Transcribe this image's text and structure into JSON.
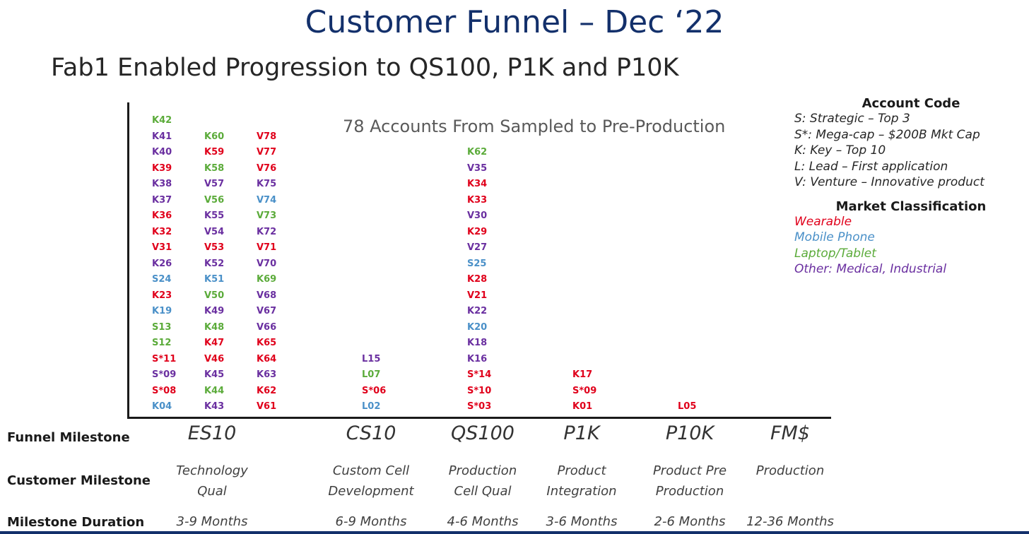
{
  "title": "Customer Funnel – Dec ‘22",
  "subtitle": "Fab1 Enabled Progression to QS100, P1K and P10K",
  "colors": {
    "wearable": "#e0001b",
    "mobile": "#4a90c8",
    "laptop": "#5bab3a",
    "other": "#6a2fa0",
    "title": "#13306b"
  },
  "chart_data": {
    "type": "table",
    "title": "78 Accounts From Sampled to Pre-Production",
    "stages": [
      "ES10",
      "CS10",
      "QS100",
      "P1K",
      "P10K",
      "FM$"
    ],
    "columns": [
      {
        "stage": "ES10",
        "accounts": [
          {
            "code": "K42",
            "market": "laptop"
          },
          {
            "code": "K41",
            "market": "other"
          },
          {
            "code": "K40",
            "market": "other"
          },
          {
            "code": "K39",
            "market": "wearable"
          },
          {
            "code": "K38",
            "market": "other"
          },
          {
            "code": "K37",
            "market": "other"
          },
          {
            "code": "K36",
            "market": "wearable"
          },
          {
            "code": "K32",
            "market": "wearable"
          },
          {
            "code": "V31",
            "market": "wearable"
          },
          {
            "code": "K26",
            "market": "other"
          },
          {
            "code": "S24",
            "market": "mobile"
          },
          {
            "code": "K23",
            "market": "wearable"
          },
          {
            "code": "K19",
            "market": "mobile"
          },
          {
            "code": "S13",
            "market": "laptop"
          },
          {
            "code": "S12",
            "market": "laptop"
          },
          {
            "code": "S*11",
            "market": "wearable"
          },
          {
            "code": "S*09",
            "market": "other"
          },
          {
            "code": "S*08",
            "market": "wearable"
          },
          {
            "code": "K04",
            "market": "mobile"
          }
        ]
      },
      {
        "stage": "ES10",
        "accounts": [
          {
            "code": "K60",
            "market": "laptop"
          },
          {
            "code": "K59",
            "market": "wearable"
          },
          {
            "code": "K58",
            "market": "laptop"
          },
          {
            "code": "V57",
            "market": "other"
          },
          {
            "code": "V56",
            "market": "laptop"
          },
          {
            "code": "K55",
            "market": "other"
          },
          {
            "code": "V54",
            "market": "other"
          },
          {
            "code": "V53",
            "market": "wearable"
          },
          {
            "code": "K52",
            "market": "other"
          },
          {
            "code": "K51",
            "market": "mobile"
          },
          {
            "code": "V50",
            "market": "laptop"
          },
          {
            "code": "K49",
            "market": "other"
          },
          {
            "code": "K48",
            "market": "laptop"
          },
          {
            "code": "K47",
            "market": "wearable"
          },
          {
            "code": "V46",
            "market": "wearable"
          },
          {
            "code": "K45",
            "market": "other"
          },
          {
            "code": "K44",
            "market": "laptop"
          },
          {
            "code": "K43",
            "market": "other"
          }
        ]
      },
      {
        "stage": "ES10",
        "accounts": [
          {
            "code": "V78",
            "market": "wearable"
          },
          {
            "code": "V77",
            "market": "wearable"
          },
          {
            "code": "V76",
            "market": "wearable"
          },
          {
            "code": "K75",
            "market": "other"
          },
          {
            "code": "V74",
            "market": "mobile"
          },
          {
            "code": "V73",
            "market": "laptop"
          },
          {
            "code": "K72",
            "market": "other"
          },
          {
            "code": "V71",
            "market": "wearable"
          },
          {
            "code": "V70",
            "market": "other"
          },
          {
            "code": "K69",
            "market": "laptop"
          },
          {
            "code": "V68",
            "market": "other"
          },
          {
            "code": "V67",
            "market": "other"
          },
          {
            "code": "V66",
            "market": "other"
          },
          {
            "code": "K65",
            "market": "wearable"
          },
          {
            "code": "K64",
            "market": "wearable"
          },
          {
            "code": "K63",
            "market": "other"
          },
          {
            "code": "K62",
            "market": "wearable"
          },
          {
            "code": "V61",
            "market": "wearable"
          }
        ]
      },
      {
        "stage": "CS10",
        "accounts": [
          {
            "code": "L15",
            "market": "other"
          },
          {
            "code": "L07",
            "market": "laptop"
          },
          {
            "code": "S*06",
            "market": "wearable"
          },
          {
            "code": "L02",
            "market": "mobile"
          }
        ]
      },
      {
        "stage": "QS100",
        "accounts": [
          {
            "code": "K62",
            "market": "laptop"
          },
          {
            "code": "V35",
            "market": "other"
          },
          {
            "code": "K34",
            "market": "wearable"
          },
          {
            "code": "K33",
            "market": "wearable"
          },
          {
            "code": "V30",
            "market": "other"
          },
          {
            "code": "K29",
            "market": "wearable"
          },
          {
            "code": "V27",
            "market": "other"
          },
          {
            "code": "S25",
            "market": "mobile"
          },
          {
            "code": "K28",
            "market": "wearable"
          },
          {
            "code": "V21",
            "market": "wearable"
          },
          {
            "code": "K22",
            "market": "other"
          },
          {
            "code": "K20",
            "market": "mobile"
          },
          {
            "code": "K18",
            "market": "other"
          },
          {
            "code": "K16",
            "market": "other"
          },
          {
            "code": "S*14",
            "market": "wearable"
          },
          {
            "code": "S*10",
            "market": "wearable"
          },
          {
            "code": "S*03",
            "market": "wearable"
          }
        ]
      },
      {
        "stage": "P1K",
        "accounts": [
          {
            "code": "K17",
            "market": "wearable"
          },
          {
            "code": "S*09",
            "market": "wearable"
          },
          {
            "code": "K01",
            "market": "wearable"
          }
        ]
      },
      {
        "stage": "P10K",
        "accounts": [
          {
            "code": "L05",
            "market": "wearable"
          }
        ]
      }
    ]
  },
  "rows": {
    "funnel_label": "Funnel Milestone",
    "customer_label": "Customer Milestone",
    "duration_label": "Milestone Duration",
    "funnel": [
      "ES10",
      "CS10",
      "QS100",
      "P1K",
      "P10K",
      "FM$"
    ],
    "customer": [
      [
        "Technology",
        "Qual"
      ],
      [
        "Custom Cell",
        "Development"
      ],
      [
        "Production",
        "Cell Qual"
      ],
      [
        "Product",
        "Integration"
      ],
      [
        "Product Pre",
        "Production"
      ],
      [
        "Production",
        ""
      ]
    ],
    "duration": [
      "3-9 Months",
      "6-9 Months",
      "4-6 Months",
      "3-6 Months",
      "2-6 Months",
      "12-36 Months"
    ]
  },
  "legend": {
    "account_code_title": "Account Code",
    "account_codes": [
      "S:  Strategic – Top 3",
      "S*: Mega-cap – $200B Mkt Cap",
      "K:   Key – Top 10",
      "L:    Lead – First application",
      "V:    Venture – Innovative product"
    ],
    "market_title": "Market Classification",
    "markets": [
      {
        "key": "wearable",
        "label": "Wearable"
      },
      {
        "key": "mobile",
        "label": "Mobile Phone"
      },
      {
        "key": "laptop",
        "label": "Laptop/Tablet"
      },
      {
        "key": "other",
        "label": "Other: Medical, Industrial"
      }
    ]
  }
}
